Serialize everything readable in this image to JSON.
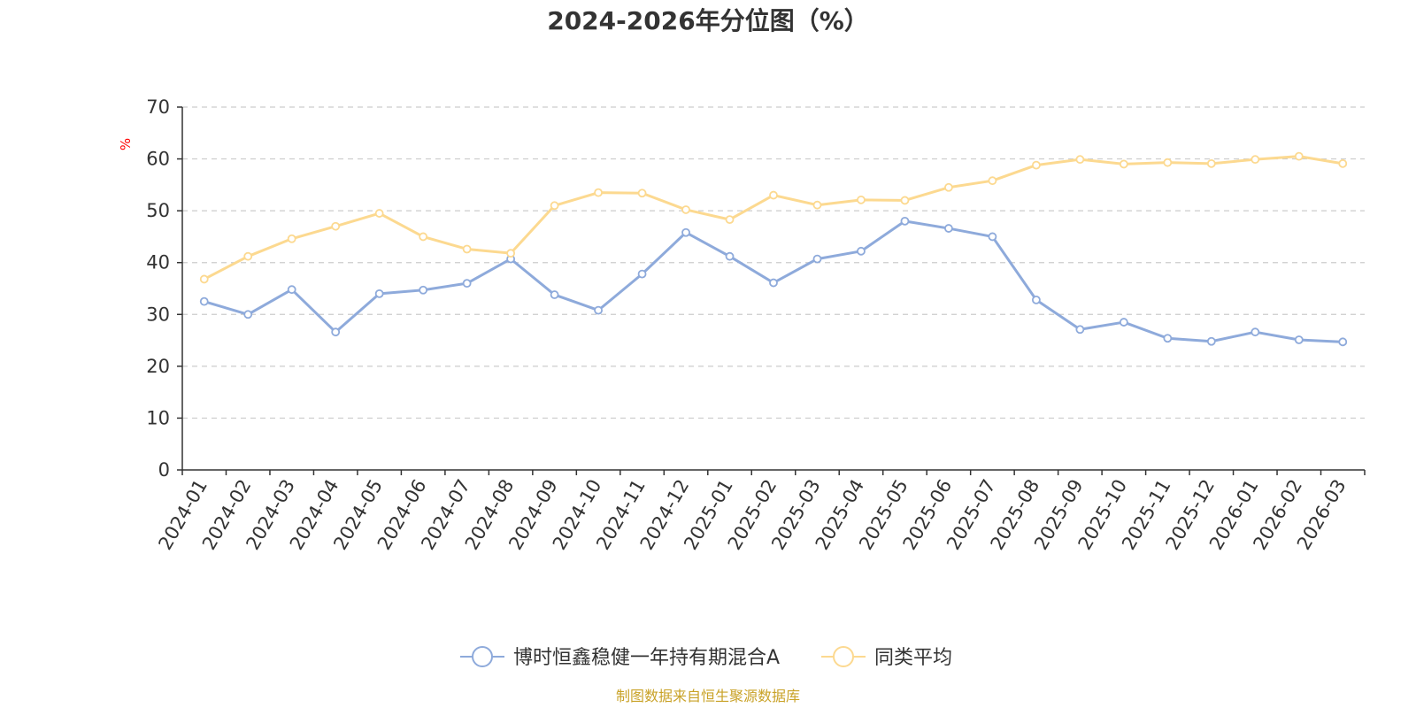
{
  "chart_data": {
    "type": "line",
    "title": "2024-2026年分位图（%）",
    "ylabel": "%",
    "ylim": [
      0,
      70
    ],
    "yticks": [
      0,
      10,
      20,
      30,
      40,
      50,
      60,
      70
    ],
    "grid": true,
    "legend_position": "bottom",
    "categories": [
      "2024-01",
      "2024-02",
      "2024-03",
      "2024-04",
      "2024-05",
      "2024-06",
      "2024-07",
      "2024-08",
      "2024-09",
      "2024-10",
      "2024-11",
      "2024-12",
      "2025-01",
      "2025-02",
      "2025-03",
      "2025-04",
      "2025-05",
      "2025-06",
      "2025-07",
      "2025-08",
      "2025-09",
      "2025-10",
      "2025-11",
      "2025-12",
      "2026-01",
      "2026-02",
      "2026-03"
    ],
    "series": [
      {
        "name": "博时恒鑫稳健一年持有期混合A",
        "color": "#8eaadb",
        "values": [
          32.5,
          30.0,
          34.8,
          26.6,
          34.0,
          34.7,
          36.0,
          40.7,
          33.8,
          30.8,
          37.8,
          45.8,
          41.2,
          36.1,
          40.7,
          42.2,
          48.0,
          46.6,
          45.0,
          32.8,
          27.1,
          28.5,
          25.4,
          24.8,
          26.6,
          25.1,
          24.7
        ]
      },
      {
        "name": "同类平均",
        "color": "#fcd990",
        "values": [
          36.8,
          41.2,
          44.6,
          47.0,
          49.5,
          45.0,
          42.6,
          41.8,
          51.0,
          53.5,
          53.4,
          50.2,
          48.3,
          53.0,
          51.1,
          52.1,
          52.0,
          54.5,
          55.8,
          58.8,
          59.9,
          59.0,
          59.3,
          59.1,
          59.9,
          60.5,
          59.1
        ]
      }
    ]
  },
  "source_text": "制图数据来自恒生聚源数据库",
  "colors": {
    "source": "#c9a227",
    "unit": "#ff0000",
    "axis": "#333333",
    "grid": "#cccccc"
  }
}
